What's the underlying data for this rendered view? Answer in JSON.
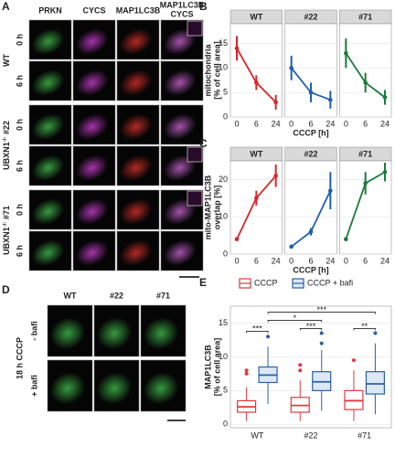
{
  "panel_a": {
    "label": "A",
    "columns": [
      "PRKN",
      "CYCS",
      "MAP1LC3B"
    ],
    "merge_label": [
      "MAP1LC3B",
      "CYCS"
    ],
    "groups": [
      {
        "name": "WT",
        "rows": [
          "0 h",
          "6 h"
        ]
      },
      {
        "name": "UBXN1",
        "superscript": "-/-",
        "suffix": " #22",
        "rows": [
          "0 h",
          "6 h"
        ]
      },
      {
        "name": "UBXN1",
        "superscript": "-/-",
        "suffix": " #71",
        "rows": [
          "0 h",
          "6 h"
        ]
      }
    ]
  },
  "panel_d": {
    "label": "D",
    "condition": "18 h CCCP",
    "rows": [
      "- bafi",
      "+ bafi"
    ],
    "columns": [
      "WT",
      "#22",
      "#71"
    ]
  },
  "chart_data": [
    {
      "type": "line",
      "label": "B",
      "ylabel": [
        "mitochondria",
        "[% of cell area]"
      ],
      "xlabel": "CCCP [h]",
      "categories": [
        "0",
        "6",
        "24"
      ],
      "ylim": [
        0,
        19
      ],
      "yticks": [
        0,
        5,
        10,
        15
      ],
      "grid": true,
      "series": [
        {
          "name": "WT",
          "color": "#d7262b",
          "values": [
            14,
            7,
            3
          ],
          "errors": [
            2.5,
            1.5,
            1.5
          ]
        },
        {
          "name": "#22",
          "color": "#1f5fb0",
          "values": [
            10,
            5,
            3.5
          ],
          "errors": [
            2.5,
            2,
            1.8
          ]
        },
        {
          "name": "#71",
          "color": "#1b7a3a",
          "values": [
            13,
            7,
            4
          ],
          "errors": [
            3,
            2,
            1.5
          ]
        }
      ]
    },
    {
      "type": "line",
      "label": "C",
      "ylabel": [
        "mito-MAP1LC3B",
        "overlap [%]"
      ],
      "xlabel": "CCCP [h]",
      "categories": [
        "0",
        "6",
        "24"
      ],
      "ylim": [
        0,
        25
      ],
      "yticks": [
        0,
        10,
        20
      ],
      "grid": true,
      "series": [
        {
          "name": "WT",
          "color": "#d7262b",
          "values": [
            4,
            15,
            21
          ],
          "errors": [
            0.5,
            2,
            3
          ]
        },
        {
          "name": "#22",
          "color": "#1f5fb0",
          "values": [
            2,
            6,
            17
          ],
          "errors": [
            0.5,
            1,
            5
          ]
        },
        {
          "name": "#71",
          "color": "#1b7a3a",
          "values": [
            4,
            19,
            22
          ],
          "errors": [
            0.5,
            3,
            2.5
          ]
        }
      ]
    },
    {
      "type": "box",
      "label": "E",
      "ylabel": [
        "MAP1LC3B",
        "[% of cell area]"
      ],
      "categories": [
        "WT",
        "#22",
        "#71"
      ],
      "ylim": [
        -0.5,
        17.5
      ],
      "yticks": [
        0,
        5,
        10,
        15
      ],
      "grid": true,
      "series": [
        {
          "name": "CCCP",
          "color": "#e0393e",
          "fill": "#ffffff",
          "boxes": [
            {
              "min": 0.5,
              "q1": 1.8,
              "median": 2.6,
              "q3": 3.5,
              "max": 5.5,
              "outliers": [
                7.5,
                8
              ]
            },
            {
              "min": 0.5,
              "q1": 1.8,
              "median": 2.8,
              "q3": 4,
              "max": 6.5,
              "outliers": [
                8,
                8.8
              ]
            },
            {
              "min": 0.5,
              "q1": 2.2,
              "median": 3.5,
              "q3": 5,
              "max": 8,
              "outliers": [
                9.5
              ]
            }
          ]
        },
        {
          "name": "CCCP + bafi",
          "color": "#2b5fa5",
          "fill": "#dce8f5",
          "boxes": [
            {
              "min": 3,
              "q1": 6.2,
              "median": 7.3,
              "q3": 8.5,
              "max": 11.5,
              "outliers": [
                13
              ]
            },
            {
              "min": 2,
              "q1": 5,
              "median": 6.3,
              "q3": 7.8,
              "max": 11,
              "outliers": [
                12,
                13.5
              ]
            },
            {
              "min": 1.5,
              "q1": 4.5,
              "median": 6,
              "q3": 7.8,
              "max": 12,
              "outliers": [
                13.5
              ]
            }
          ]
        }
      ],
      "annotations": [
        {
          "label": "***"
        },
        {
          "label": "***"
        },
        {
          "label": "**"
        },
        {
          "label": "*"
        },
        {
          "label": "***"
        }
      ]
    }
  ]
}
